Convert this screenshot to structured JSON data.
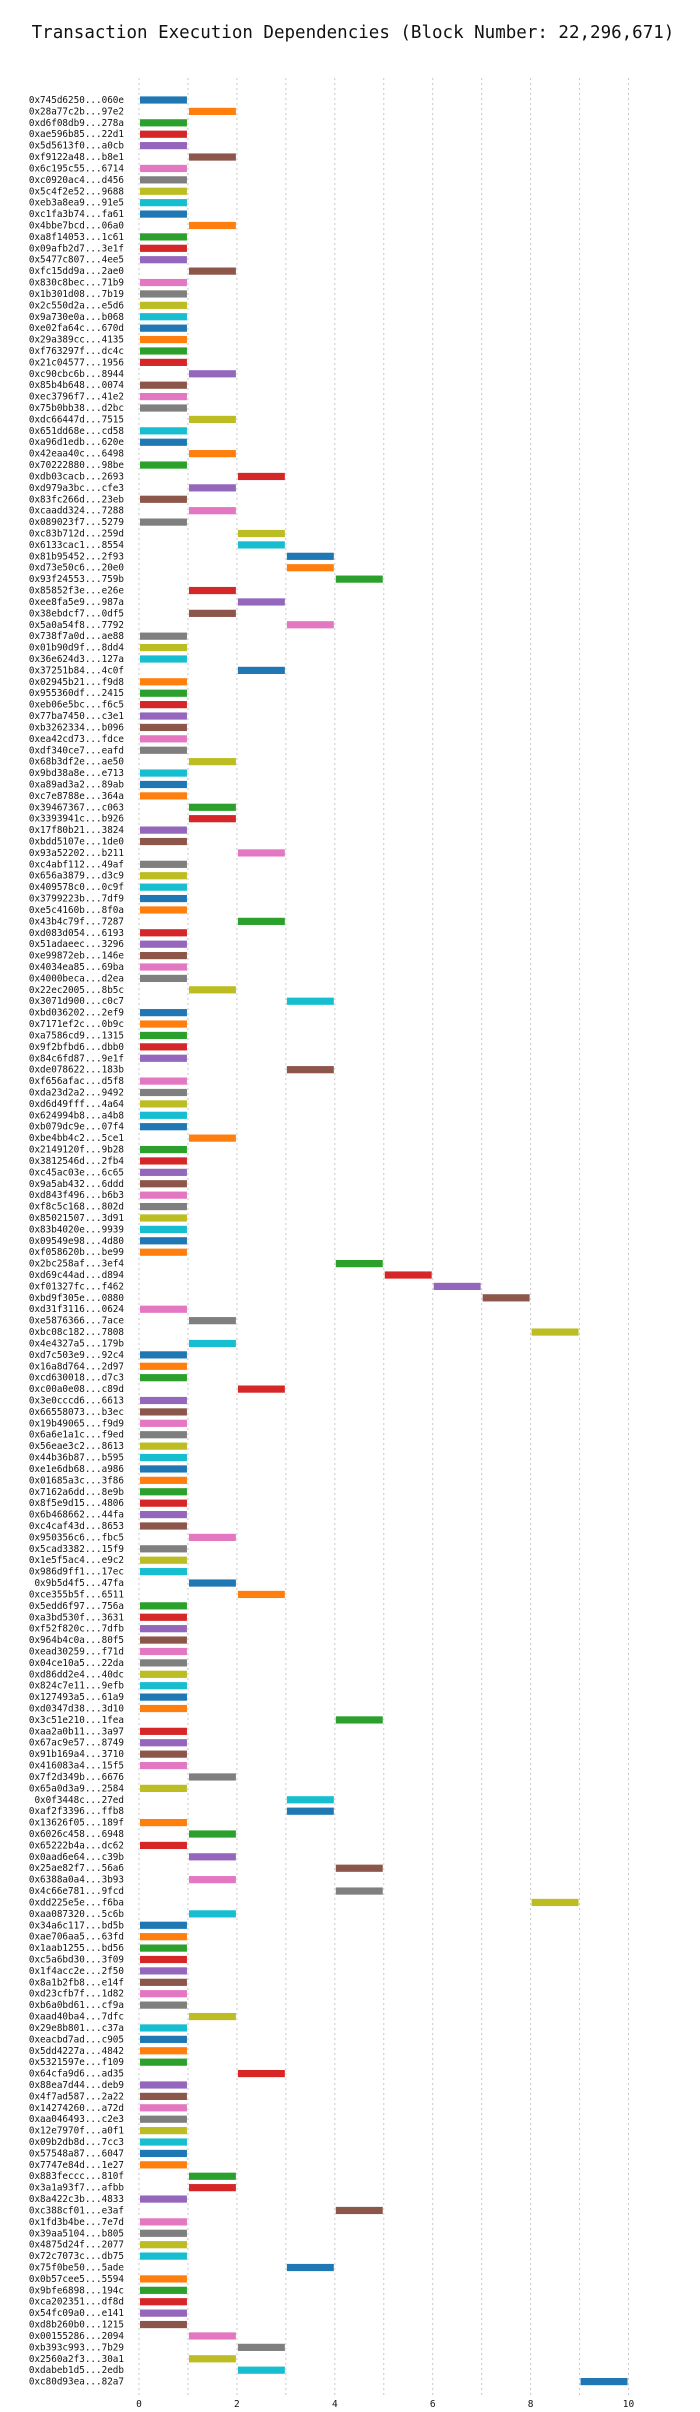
{
  "chart_data": {
    "type": "gantt",
    "title": "Transaction Execution Dependencies (Block Number: 22,296,671)",
    "xlabel": "",
    "ylabel": "",
    "xlim": [
      0,
      10.5
    ],
    "x_ticks": [
      0,
      2,
      4,
      6,
      8,
      10
    ],
    "grid": "vertical dotted",
    "palette": [
      "#1f77b4",
      "#ff7f0e",
      "#2ca02c",
      "#d62728",
      "#9467bd",
      "#8c564b",
      "#e377c2",
      "#7f7f7f",
      "#bcbd22",
      "#17becf"
    ],
    "transactions": [
      {
        "label": "0x745d6250...060e",
        "start": 0,
        "end": 1
      },
      {
        "label": "0x28a77c2b...97e2",
        "start": 1,
        "end": 2
      },
      {
        "label": "0xd6f08db9...278a",
        "start": 0,
        "end": 1
      },
      {
        "label": "0xae596b85...22d1",
        "start": 0,
        "end": 1
      },
      {
        "label": "0x5d5613f0...a0cb",
        "start": 0,
        "end": 1
      },
      {
        "label": "0xf9122a48...b8e1",
        "start": 1,
        "end": 2
      },
      {
        "label": "0x6c195c55...6714",
        "start": 0,
        "end": 1
      },
      {
        "label": "0xc0920ac4...d456",
        "start": 0,
        "end": 1
      },
      {
        "label": "0x5c4f2e52...9688",
        "start": 0,
        "end": 1
      },
      {
        "label": "0xeb3a8ea9...91e5",
        "start": 0,
        "end": 1
      },
      {
        "label": "0xc1fa3b74...fa61",
        "start": 0,
        "end": 1
      },
      {
        "label": "0x4bbe7bcd...06a0",
        "start": 1,
        "end": 2
      },
      {
        "label": "0xa8f14053...1c61",
        "start": 0,
        "end": 1
      },
      {
        "label": "0x09afb2d7...3e1f",
        "start": 0,
        "end": 1
      },
      {
        "label": "0x5477c807...4ee5",
        "start": 0,
        "end": 1
      },
      {
        "label": "0xfc15dd9a...2ae0",
        "start": 1,
        "end": 2
      },
      {
        "label": "0x830c8bec...71b9",
        "start": 0,
        "end": 1
      },
      {
        "label": "0x1b301d08...7b19",
        "start": 0,
        "end": 1
      },
      {
        "label": "0x2c550d2a...e5d6",
        "start": 0,
        "end": 1
      },
      {
        "label": "0x9a730e0a...b068",
        "start": 0,
        "end": 1
      },
      {
        "label": "0xe02fa64c...670d",
        "start": 0,
        "end": 1
      },
      {
        "label": "0x29a389cc...4135",
        "start": 0,
        "end": 1
      },
      {
        "label": "0xf763297f...dc4c",
        "start": 0,
        "end": 1
      },
      {
        "label": "0x21c04577...1956",
        "start": 0,
        "end": 1
      },
      {
        "label": "0xc90cbc6b...8944",
        "start": 1,
        "end": 2
      },
      {
        "label": "0x85b4b648...0074",
        "start": 0,
        "end": 1
      },
      {
        "label": "0xec3796f7...41e2",
        "start": 0,
        "end": 1
      },
      {
        "label": "0x75b0bb38...d2bc",
        "start": 0,
        "end": 1
      },
      {
        "label": "0xdc66447d...7515",
        "start": 1,
        "end": 2
      },
      {
        "label": "0x651dd68e...cd58",
        "start": 0,
        "end": 1
      },
      {
        "label": "0xa96d1edb...620e",
        "start": 0,
        "end": 1
      },
      {
        "label": "0x42eaa40c...6498",
        "start": 1,
        "end": 2
      },
      {
        "label": "0x70222880...98be",
        "start": 0,
        "end": 1
      },
      {
        "label": "0xdb03cacb...2693",
        "start": 2,
        "end": 3
      },
      {
        "label": "0xd979a3bc...cfe3",
        "start": 1,
        "end": 2
      },
      {
        "label": "0x83fc266d...23eb",
        "start": 0,
        "end": 1
      },
      {
        "label": "0xcaadd324...7288",
        "start": 1,
        "end": 2
      },
      {
        "label": "0x089023f7...5279",
        "start": 0,
        "end": 1
      },
      {
        "label": "0xc83b712d...259d",
        "start": 2,
        "end": 3
      },
      {
        "label": "0x6133cac1...8554",
        "start": 2,
        "end": 3
      },
      {
        "label": "0x81b95452...2f93",
        "start": 3,
        "end": 4
      },
      {
        "label": "0xd73e50c6...20e0",
        "start": 3,
        "end": 4
      },
      {
        "label": "0x93f24553...759b",
        "start": 4,
        "end": 5
      },
      {
        "label": "0x85852f3e...e26e",
        "start": 1,
        "end": 2
      },
      {
        "label": "0xee8fa5e9...987a",
        "start": 2,
        "end": 3
      },
      {
        "label": "0x38ebdcf7...0df5",
        "start": 1,
        "end": 2
      },
      {
        "label": "0x5a0a54f8...7792",
        "start": 3,
        "end": 4
      },
      {
        "label": "0x738f7a0d...ae88",
        "start": 0,
        "end": 1
      },
      {
        "label": "0x01b90d9f...8dd4",
        "start": 0,
        "end": 1
      },
      {
        "label": "0x36e624d3...127a",
        "start": 0,
        "end": 1
      },
      {
        "label": "0x37251b84...4c0f",
        "start": 2,
        "end": 3
      },
      {
        "label": "0x02945b21...f9d8",
        "start": 0,
        "end": 1
      },
      {
        "label": "0x955360df...2415",
        "start": 0,
        "end": 1
      },
      {
        "label": "0xeb06e5bc...f6c5",
        "start": 0,
        "end": 1
      },
      {
        "label": "0x77ba7450...c3e1",
        "start": 0,
        "end": 1
      },
      {
        "label": "0xb3262334...b096",
        "start": 0,
        "end": 1
      },
      {
        "label": "0xea42cd73...fdce",
        "start": 0,
        "end": 1
      },
      {
        "label": "0xdf340ce7...eafd",
        "start": 0,
        "end": 1
      },
      {
        "label": "0x68b3df2e...ae50",
        "start": 1,
        "end": 2
      },
      {
        "label": "0x9bd38a8e...e713",
        "start": 0,
        "end": 1
      },
      {
        "label": "0xa89ad3a2...89ab",
        "start": 0,
        "end": 1
      },
      {
        "label": "0xc7e8788e...364a",
        "start": 0,
        "end": 1
      },
      {
        "label": "0x39467367...c063",
        "start": 1,
        "end": 2
      },
      {
        "label": "0x3393941c...b926",
        "start": 1,
        "end": 2
      },
      {
        "label": "0x17f80b21...3824",
        "start": 0,
        "end": 1
      },
      {
        "label": "0xbdd5107e...1de0",
        "start": 0,
        "end": 1
      },
      {
        "label": "0x93a52202...b211",
        "start": 2,
        "end": 3
      },
      {
        "label": "0xc4abf112...49af",
        "start": 0,
        "end": 1
      },
      {
        "label": "0x656a3879...d3c9",
        "start": 0,
        "end": 1
      },
      {
        "label": "0x409578c0...0c9f",
        "start": 0,
        "end": 1
      },
      {
        "label": "0x3799223b...7df9",
        "start": 0,
        "end": 1
      },
      {
        "label": "0xe5c4160b...8f0a",
        "start": 0,
        "end": 1
      },
      {
        "label": "0x43b4c79f...7287",
        "start": 2,
        "end": 3
      },
      {
        "label": "0xd083d054...6193",
        "start": 0,
        "end": 1
      },
      {
        "label": "0x51adaeec...3296",
        "start": 0,
        "end": 1
      },
      {
        "label": "0xe99872eb...146e",
        "start": 0,
        "end": 1
      },
      {
        "label": "0x4034ea85...69ba",
        "start": 0,
        "end": 1
      },
      {
        "label": "0x4000beca...d2ea",
        "start": 0,
        "end": 1
      },
      {
        "label": "0x22ec2005...8b5c",
        "start": 1,
        "end": 2
      },
      {
        "label": "0x3071d900...c0c7",
        "start": 3,
        "end": 4
      },
      {
        "label": "0xbd036202...2ef9",
        "start": 0,
        "end": 1
      },
      {
        "label": "0x7171ef2c...0b9c",
        "start": 0,
        "end": 1
      },
      {
        "label": "0xa7586cd9...1315",
        "start": 0,
        "end": 1
      },
      {
        "label": "0x9f2bfbd6...dbb0",
        "start": 0,
        "end": 1
      },
      {
        "label": "0x84c6fd87...9e1f",
        "start": 0,
        "end": 1
      },
      {
        "label": "0xde078622...183b",
        "start": 3,
        "end": 4
      },
      {
        "label": "0xf656afac...d5f8",
        "start": 0,
        "end": 1
      },
      {
        "label": "0xda23d2a2...9492",
        "start": 0,
        "end": 1
      },
      {
        "label": "0xd6d49fff...4a64",
        "start": 0,
        "end": 1
      },
      {
        "label": "0x624994b8...a4b8",
        "start": 0,
        "end": 1
      },
      {
        "label": "0xb079dc9e...07f4",
        "start": 0,
        "end": 1
      },
      {
        "label": "0xbe4bb4c2...5ce1",
        "start": 1,
        "end": 2
      },
      {
        "label": "0x2149120f...9b28",
        "start": 0,
        "end": 1
      },
      {
        "label": "0x3812546d...2fb4",
        "start": 0,
        "end": 1
      },
      {
        "label": "0xc45ac03e...6c65",
        "start": 0,
        "end": 1
      },
      {
        "label": "0x9a5ab432...6ddd",
        "start": 0,
        "end": 1
      },
      {
        "label": "0xd843f496...b6b3",
        "start": 0,
        "end": 1
      },
      {
        "label": "0xf8c5c168...802d",
        "start": 0,
        "end": 1
      },
      {
        "label": "0x85021507...3d91",
        "start": 0,
        "end": 1
      },
      {
        "label": "0x83b4020e...9939",
        "start": 0,
        "end": 1
      },
      {
        "label": "0x09549e98...4d80",
        "start": 0,
        "end": 1
      },
      {
        "label": "0xf058620b...be99",
        "start": 0,
        "end": 1
      },
      {
        "label": "0x2bc258af...3ef4",
        "start": 4,
        "end": 5
      },
      {
        "label": "0xd69c44ad...d894",
        "start": 5,
        "end": 6
      },
      {
        "label": "0xf01327fc...f462",
        "start": 6,
        "end": 7
      },
      {
        "label": "0xbd9f305e...0880",
        "start": 7,
        "end": 8
      },
      {
        "label": "0xd31f3116...0624",
        "start": 0,
        "end": 1
      },
      {
        "label": "0xe5876366...7ace",
        "start": 1,
        "end": 2
      },
      {
        "label": "0xbc08c182...7808",
        "start": 8,
        "end": 9
      },
      {
        "label": "0x4e4327a5...179b",
        "start": 1,
        "end": 2
      },
      {
        "label": "0xd7c503e9...92c4",
        "start": 0,
        "end": 1
      },
      {
        "label": "0x16a8d764...2d97",
        "start": 0,
        "end": 1
      },
      {
        "label": "0xcd630018...d7c3",
        "start": 0,
        "end": 1
      },
      {
        "label": "0xc00a0e08...c89d",
        "start": 2,
        "end": 3
      },
      {
        "label": "0x3e0cccd6...6613",
        "start": 0,
        "end": 1
      },
      {
        "label": "0x66558073...b3ec",
        "start": 0,
        "end": 1
      },
      {
        "label": "0x19b49065...f9d9",
        "start": 0,
        "end": 1
      },
      {
        "label": "0x6a6e1a1c...f9ed",
        "start": 0,
        "end": 1
      },
      {
        "label": "0x56eae3c2...8613",
        "start": 0,
        "end": 1
      },
      {
        "label": "0x44b36b87...b595",
        "start": 0,
        "end": 1
      },
      {
        "label": "0xe1e6db68...a986",
        "start": 0,
        "end": 1
      },
      {
        "label": "0x01685a3c...3f86",
        "start": 0,
        "end": 1
      },
      {
        "label": "0x7162a6dd...8e9b",
        "start": 0,
        "end": 1
      },
      {
        "label": "0x8f5e9d15...4806",
        "start": 0,
        "end": 1
      },
      {
        "label": "0x6b468662...44fa",
        "start": 0,
        "end": 1
      },
      {
        "label": "0xc4caf43d...8653",
        "start": 0,
        "end": 1
      },
      {
        "label": "0x950356c6...fbc5",
        "start": 1,
        "end": 2
      },
      {
        "label": "0x5cad3382...15f9",
        "start": 0,
        "end": 1
      },
      {
        "label": "0x1e5f5ac4...e9c2",
        "start": 0,
        "end": 1
      },
      {
        "label": "0x986d9ff1...17ec",
        "start": 0,
        "end": 1
      },
      {
        "label": "0x9b5d4f5...47fa",
        "start": 1,
        "end": 2
      },
      {
        "label": "0xce355b5f...6511",
        "start": 2,
        "end": 3
      },
      {
        "label": "0x5edd6f97...756a",
        "start": 0,
        "end": 1
      },
      {
        "label": "0xa3bd530f...3631",
        "start": 0,
        "end": 1
      },
      {
        "label": "0xf52f820c...7dfb",
        "start": 0,
        "end": 1
      },
      {
        "label": "0x964b4c0a...80f5",
        "start": 0,
        "end": 1
      },
      {
        "label": "0xead30259...f71d",
        "start": 0,
        "end": 1
      },
      {
        "label": "0x04ce10a5...22da",
        "start": 0,
        "end": 1
      },
      {
        "label": "0xd86dd2e4...40dc",
        "start": 0,
        "end": 1
      },
      {
        "label": "0x824c7e11...9efb",
        "start": 0,
        "end": 1
      },
      {
        "label": "0x127493a5...61a9",
        "start": 0,
        "end": 1
      },
      {
        "label": "0xd0347d38...3d10",
        "start": 0,
        "end": 1
      },
      {
        "label": "0x3c51e210...1fea",
        "start": 4,
        "end": 5
      },
      {
        "label": "0xaa2a0b11...3a97",
        "start": 0,
        "end": 1
      },
      {
        "label": "0x67ac9e57...8749",
        "start": 0,
        "end": 1
      },
      {
        "label": "0x91b169a4...3710",
        "start": 0,
        "end": 1
      },
      {
        "label": "0x416083a4...15f5",
        "start": 0,
        "end": 1
      },
      {
        "label": "0x7f2d349b...6676",
        "start": 1,
        "end": 2
      },
      {
        "label": "0x65a0d3a9...2584",
        "start": 0,
        "end": 1
      },
      {
        "label": "0x0f3448c...27ed",
        "start": 3,
        "end": 4
      },
      {
        "label": "0xaf2f3396...ffb8",
        "start": 3,
        "end": 4
      },
      {
        "label": "0x13626f05...189f",
        "start": 0,
        "end": 1
      },
      {
        "label": "0x6026c458...6948",
        "start": 1,
        "end": 2
      },
      {
        "label": "0x65222b4a...dc62",
        "start": 0,
        "end": 1
      },
      {
        "label": "0x0aad6e64...c39b",
        "start": 1,
        "end": 2
      },
      {
        "label": "0x25ae82f7...56a6",
        "start": 4,
        "end": 5
      },
      {
        "label": "0x6388a0a4...3b93",
        "start": 1,
        "end": 2
      },
      {
        "label": "0x4c66e781...9fcd",
        "start": 4,
        "end": 5
      },
      {
        "label": "0xdd225e5e...f6ba",
        "start": 8,
        "end": 9
      },
      {
        "label": "0xaa087320...5c6b",
        "start": 1,
        "end": 2
      },
      {
        "label": "0x34a6c117...bd5b",
        "start": 0,
        "end": 1
      },
      {
        "label": "0xae706aa5...63fd",
        "start": 0,
        "end": 1
      },
      {
        "label": "0x1aab1255...bd56",
        "start": 0,
        "end": 1
      },
      {
        "label": "0xc5a6bd30...3f09",
        "start": 0,
        "end": 1
      },
      {
        "label": "0x1f4acc2e...2f50",
        "start": 0,
        "end": 1
      },
      {
        "label": "0x8a1b2fb8...e14f",
        "start": 0,
        "end": 1
      },
      {
        "label": "0xd23cfb7f...1d82",
        "start": 0,
        "end": 1
      },
      {
        "label": "0xb6a0bd61...cf9a",
        "start": 0,
        "end": 1
      },
      {
        "label": "0xaad40ba4...7dfc",
        "start": 1,
        "end": 2
      },
      {
        "label": "0x29e8b801...c37a",
        "start": 0,
        "end": 1
      },
      {
        "label": "0xeacbd7ad...c905",
        "start": 0,
        "end": 1
      },
      {
        "label": "0x5dd4227a...4842",
        "start": 0,
        "end": 1
      },
      {
        "label": "0x5321597e...f109",
        "start": 0,
        "end": 1
      },
      {
        "label": "0x64cfa9d6...ad35",
        "start": 2,
        "end": 3
      },
      {
        "label": "0x88ea7d44...deb9",
        "start": 0,
        "end": 1
      },
      {
        "label": "0x4f7ad587...2a22",
        "start": 0,
        "end": 1
      },
      {
        "label": "0x14274260...a72d",
        "start": 0,
        "end": 1
      },
      {
        "label": "0xaa046493...c2e3",
        "start": 0,
        "end": 1
      },
      {
        "label": "0x12e7970f...a0f1",
        "start": 0,
        "end": 1
      },
      {
        "label": "0x09b2db8d...7cc3",
        "start": 0,
        "end": 1
      },
      {
        "label": "0x57548a87...6047",
        "start": 0,
        "end": 1
      },
      {
        "label": "0x7747e84d...1e27",
        "start": 0,
        "end": 1
      },
      {
        "label": "0x883feccc...810f",
        "start": 1,
        "end": 2
      },
      {
        "label": "0x3a1a93f7...afbb",
        "start": 1,
        "end": 2
      },
      {
        "label": "0x8a422c3b...4833",
        "start": 0,
        "end": 1
      },
      {
        "label": "0xc388cf01...e3af",
        "start": 4,
        "end": 5
      },
      {
        "label": "0x1fd3b4be...7e7d",
        "start": 0,
        "end": 1
      },
      {
        "label": "0x39aa5104...b805",
        "start": 0,
        "end": 1
      },
      {
        "label": "0x4875d24f...2077",
        "start": 0,
        "end": 1
      },
      {
        "label": "0x72c7073c...db75",
        "start": 0,
        "end": 1
      },
      {
        "label": "0x75f0be50...5ade",
        "start": 3,
        "end": 4
      },
      {
        "label": "0x0b57cee5...5594",
        "start": 0,
        "end": 1
      },
      {
        "label": "0x9bfe6898...194c",
        "start": 0,
        "end": 1
      },
      {
        "label": "0xca202351...df8d",
        "start": 0,
        "end": 1
      },
      {
        "label": "0x54fc09a0...e141",
        "start": 0,
        "end": 1
      },
      {
        "label": "0xd8b260b0...1215",
        "start": 0,
        "end": 1
      },
      {
        "label": "0x00155286...2094",
        "start": 1,
        "end": 2
      },
      {
        "label": "0xb393c993...7b29",
        "start": 2,
        "end": 3
      },
      {
        "label": "0x2560a2f3...30a1",
        "start": 1,
        "end": 2
      },
      {
        "label": "0xdabeb1d5...2edb",
        "start": 2,
        "end": 3
      },
      {
        "label": "0xc80d93ea...82a7",
        "start": 9,
        "end": 10
      }
    ]
  }
}
